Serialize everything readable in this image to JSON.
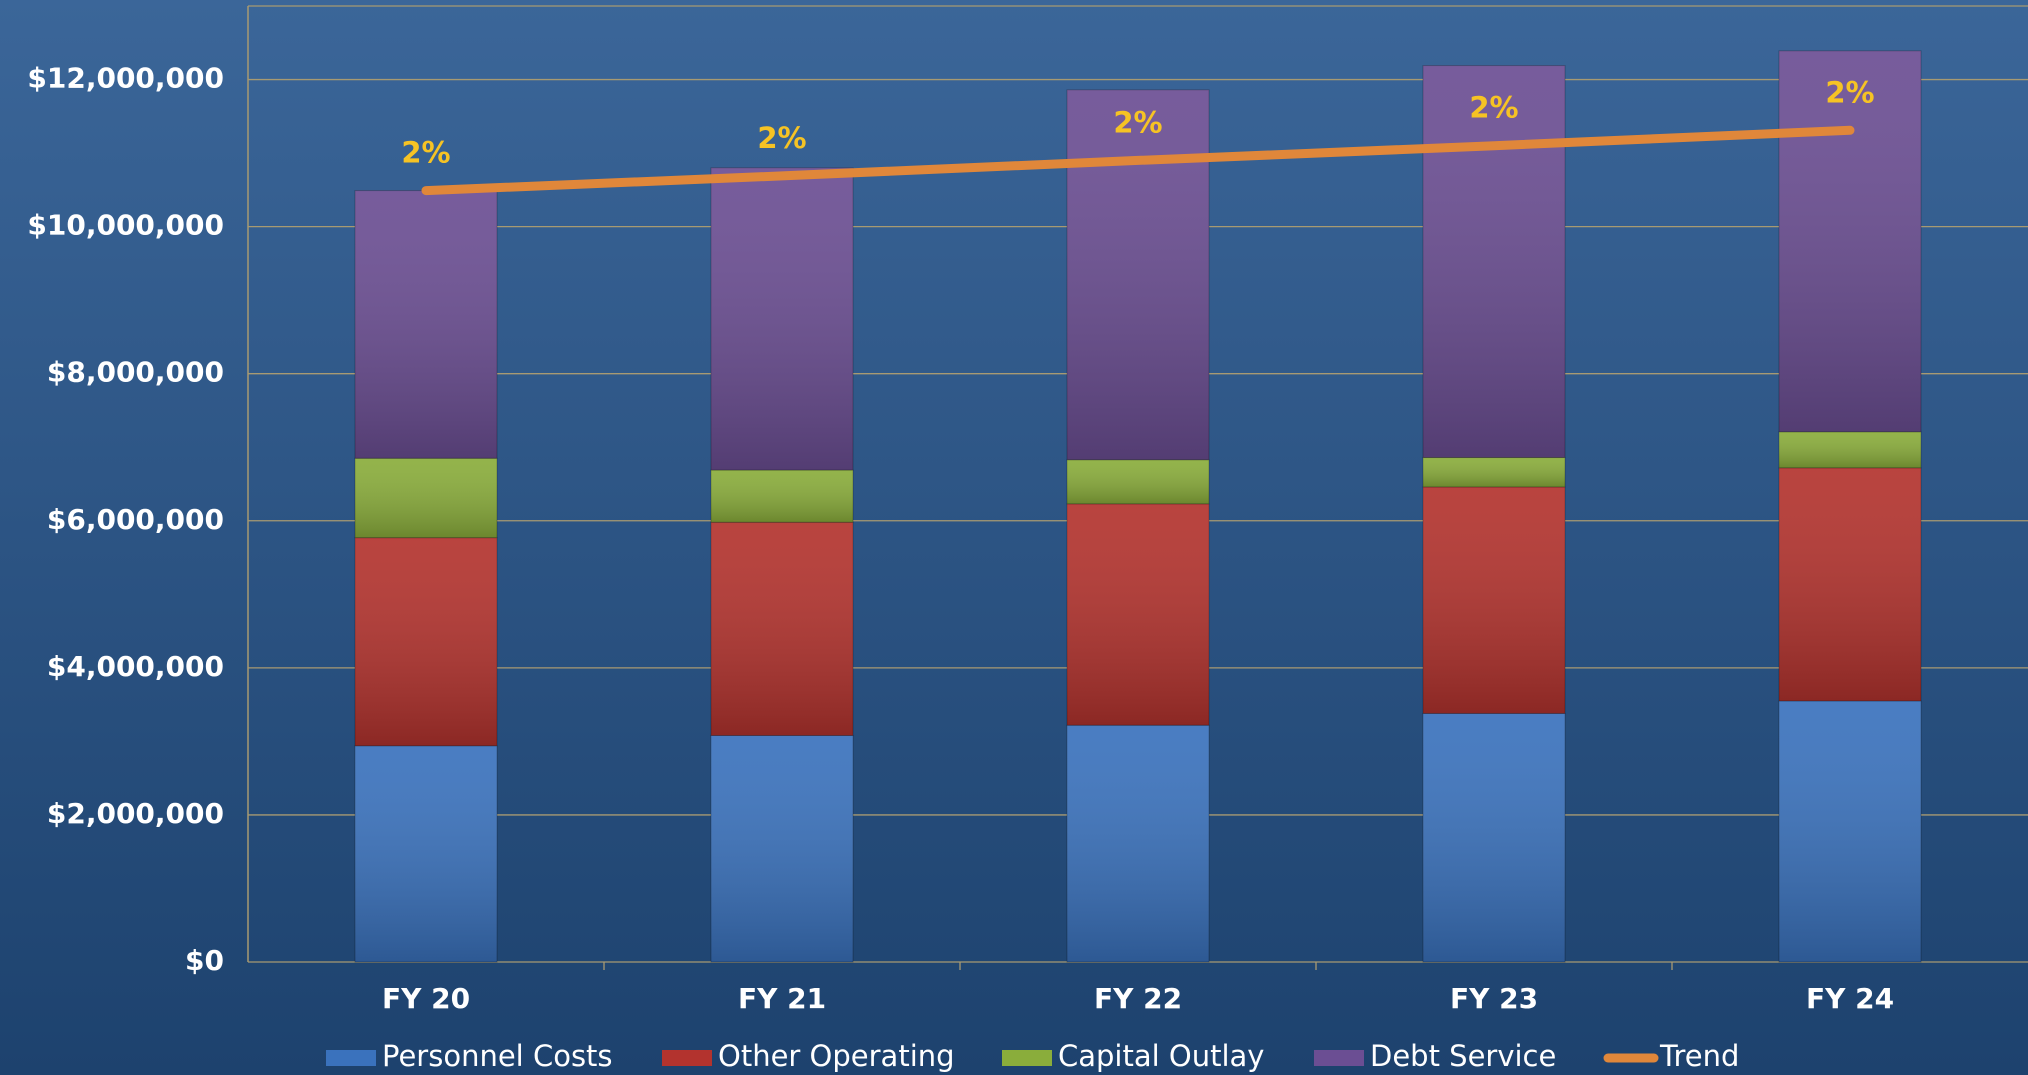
{
  "chart_data": {
    "type": "bar",
    "stacked": true,
    "categories": [
      "FY 20",
      "FY 21",
      "FY 22",
      "FY 23",
      "FY 24"
    ],
    "series": [
      {
        "name": "Personnel Costs",
        "color": "#3a72bd",
        "values": [
          2940000,
          3080000,
          3220000,
          3380000,
          3550000
        ]
      },
      {
        "name": "Other Operating",
        "color": "#b3332e",
        "values": [
          2830000,
          2900000,
          3010000,
          3080000,
          3170000
        ]
      },
      {
        "name": "Capital Outlay",
        "color": "#8aad3b",
        "values": [
          1080000,
          710000,
          600000,
          400000,
          490000
        ]
      },
      {
        "name": "Debt Service",
        "color": "#6b4e93",
        "values": [
          3640000,
          4110000,
          5030000,
          5330000,
          5180000
        ]
      },
      {
        "name": "Trend",
        "color": "#e0873a",
        "type": "line",
        "values": [
          10490000,
          10690000,
          10900000,
          11100000,
          11310000
        ]
      }
    ],
    "annotations": [
      "2%",
      "2%",
      "2%",
      "2%",
      "2%"
    ],
    "ylim": [
      0,
      13000000
    ],
    "yticks": [
      {
        "value": 0,
        "label": "$0"
      },
      {
        "value": 2000000,
        "label": "$2,000,000"
      },
      {
        "value": 4000000,
        "label": "$4,000,000"
      },
      {
        "value": 6000000,
        "label": "$6,000,000"
      },
      {
        "value": 8000000,
        "label": "$8,000,000"
      },
      {
        "value": 10000000,
        "label": "$10,000,000"
      },
      {
        "value": 12000000,
        "label": "$12,000,000"
      }
    ],
    "grid": true,
    "legend": "bottom"
  }
}
